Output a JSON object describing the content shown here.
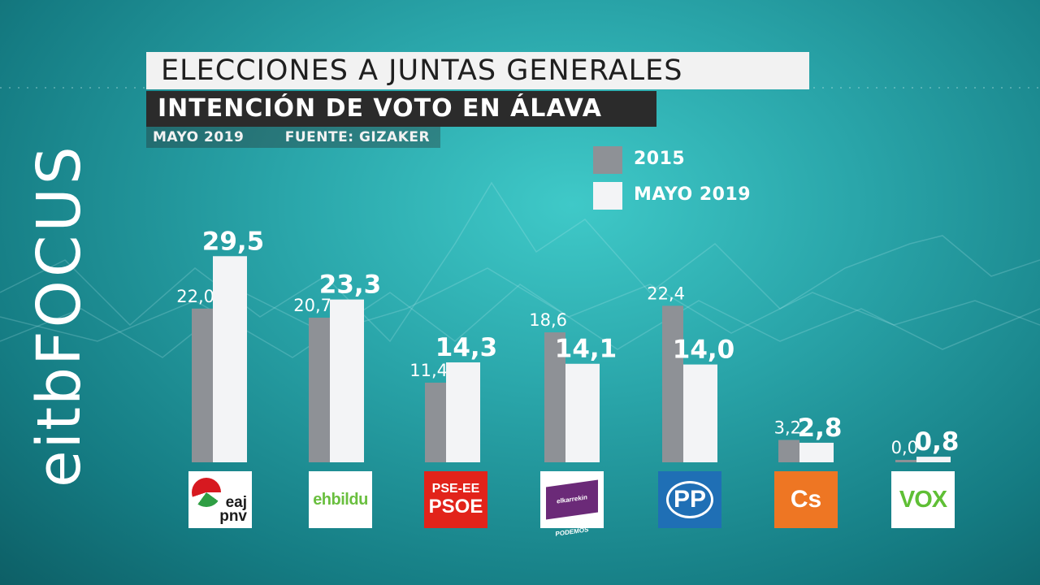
{
  "brand": {
    "part1": "eitb",
    "part2": "FOCUS"
  },
  "header": {
    "title": "ELECCIONES A JUNTAS GENERALES",
    "subtitle": "INTENCIÓN DE VOTO EN ÁLAVA",
    "date": "MAYO 2019",
    "source": "FUENTE: GIZAKER"
  },
  "colors": {
    "series_2015": "#8e9196",
    "series_2019": "#f3f4f6"
  },
  "chart_data": {
    "type": "bar",
    "title": "INTENCIÓN DE VOTO EN ÁLAVA",
    "xlabel": "",
    "ylabel": "",
    "ylim": [
      0,
      30
    ],
    "legend_position": "top-right",
    "grid": false,
    "categories": [
      "EAJ-PNV",
      "EH Bildu",
      "PSE-EE PSOE",
      "Elkarrekin Podemos",
      "PP",
      "Cs",
      "VOX"
    ],
    "series": [
      {
        "name": "2015",
        "values": [
          22.0,
          20.7,
          11.4,
          18.6,
          22.4,
          3.2,
          0.0
        ],
        "labels": [
          "22,0",
          "20,7",
          "11,4",
          "18,6",
          "22,4",
          "3,2",
          "0,0"
        ]
      },
      {
        "name": "MAYO 2019",
        "values": [
          29.5,
          23.3,
          14.3,
          14.1,
          14.0,
          2.8,
          0.8
        ],
        "labels": [
          "29,5",
          "23,3",
          "14,3",
          "14,1",
          "14,0",
          "2,8",
          "0,8"
        ]
      }
    ]
  },
  "logos": {
    "pnv": {
      "line1": "eaj",
      "line2": "pnv",
      "icon": "pnv-swirl-icon"
    },
    "bildu": {
      "text": "ehbildu"
    },
    "psoe": {
      "line1": "PSE-EE",
      "line2": "PSOE"
    },
    "podemos": {
      "text": "elkarrekin PODEMOS"
    },
    "pp": {
      "text": "PP"
    },
    "cs": {
      "text": "Cs"
    },
    "vox": {
      "text": "VOX"
    }
  }
}
